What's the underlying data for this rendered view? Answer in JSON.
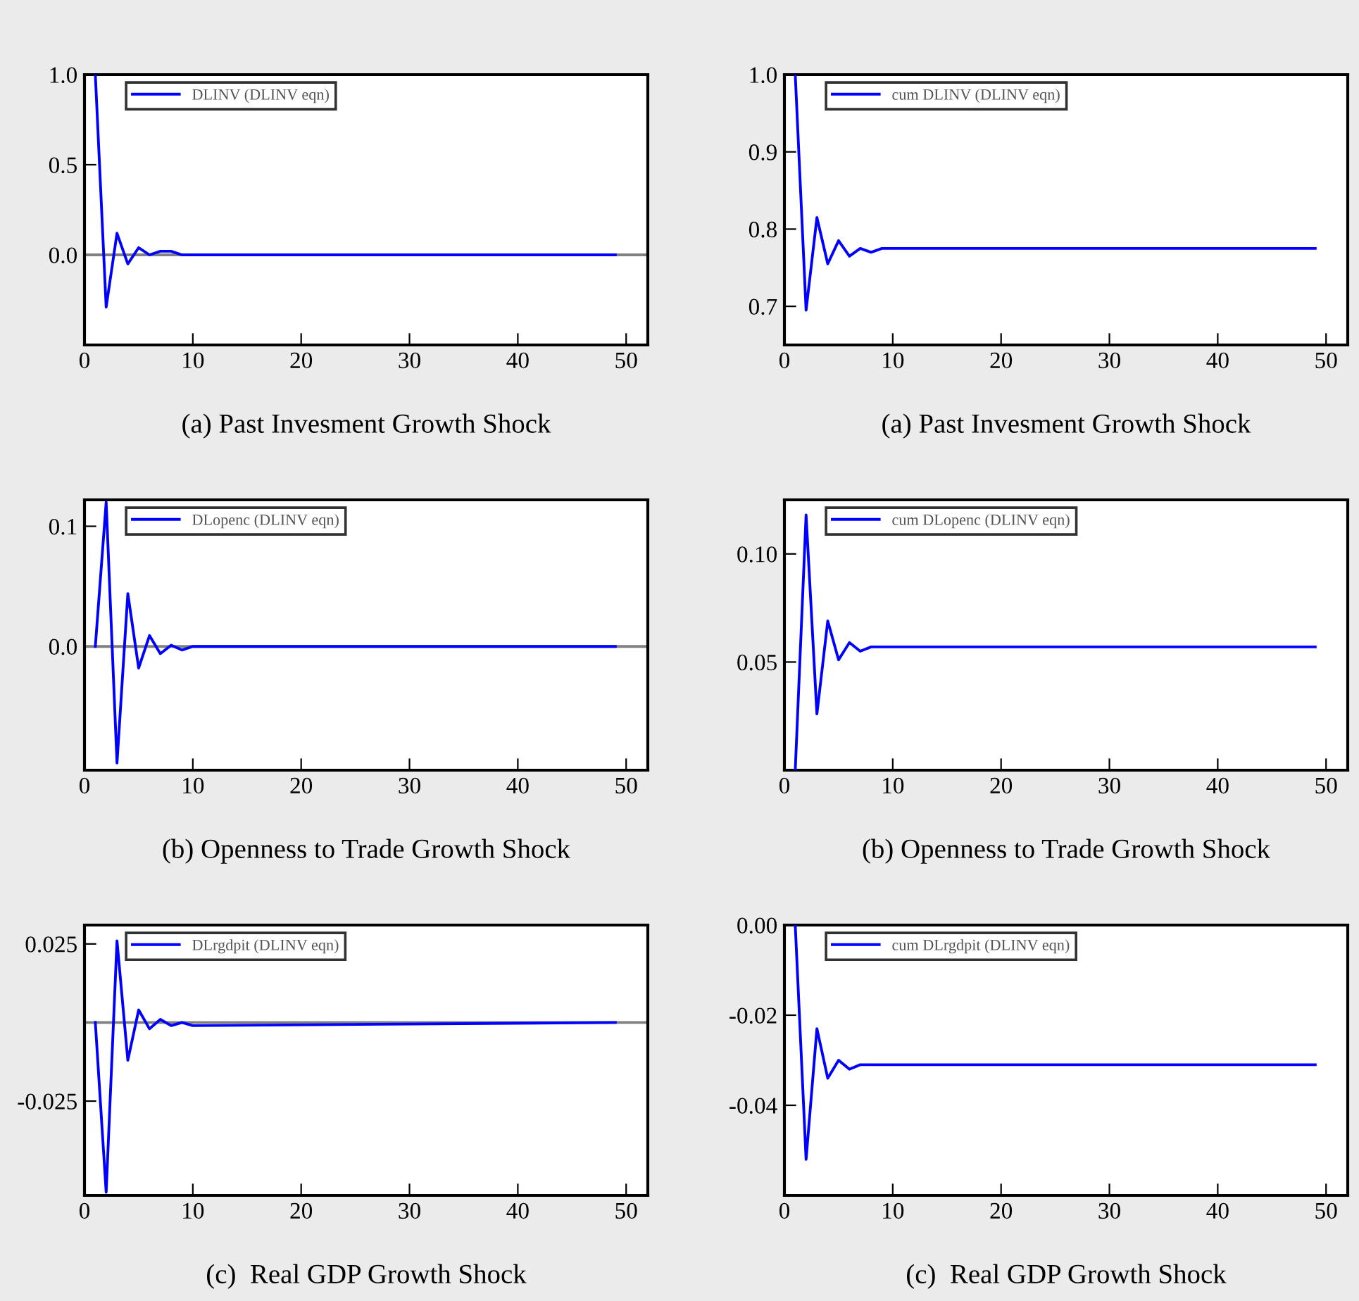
{
  "chart_data": [
    {
      "type": "line",
      "title": "(a) Past Invesment Growth Shock",
      "x": [
        1,
        2,
        3,
        4,
        5,
        6,
        7,
        8,
        9,
        49
      ],
      "series": [
        {
          "name": "DLINV (DLINV eqn)",
          "color": "#0000ff",
          "values": [
            1.0,
            -0.29,
            0.12,
            -0.05,
            0.04,
            0.0,
            0.02,
            0.02,
            0.0,
            0.0
          ]
        }
      ],
      "xlim": [
        0,
        52
      ],
      "xticks": [
        0,
        10,
        20,
        30,
        40,
        50
      ],
      "ylim": [
        -0.5,
        1.0
      ],
      "yticks": [
        {
          "value": 0,
          "label": "0.0"
        },
        0.5,
        {
          "value": 1,
          "label": "1.0"
        }
      ],
      "ref_lines": [
        {
          "axis": "y",
          "value": 0,
          "color": "#808080"
        }
      ],
      "legend": "top left",
      "grid": false
    },
    {
      "type": "line",
      "title": "(a) Past Invesment Growth Shock",
      "x": [
        1,
        2,
        3,
        4,
        5,
        6,
        7,
        8,
        9,
        49
      ],
      "series": [
        {
          "name": "cum DLINV (DLINV eqn)",
          "color": "#0000ff",
          "values": [
            1.0,
            0.695,
            0.815,
            0.755,
            0.785,
            0.765,
            0.775,
            0.77,
            0.775,
            0.775
          ]
        }
      ],
      "xlim": [
        0,
        52
      ],
      "xticks": [
        0,
        10,
        20,
        30,
        40,
        50
      ],
      "ylim": [
        0.65,
        1.0
      ],
      "yticks": [
        0.7,
        0.8,
        0.9,
        {
          "value": 1,
          "label": "1.0"
        }
      ],
      "legend": "top left",
      "grid": false
    },
    {
      "type": "line",
      "title": "(b) Openness to Trade Growth Shock",
      "x": [
        1,
        2,
        3,
        4,
        5,
        6,
        7,
        8,
        9,
        10,
        49
      ],
      "series": [
        {
          "name": "DLopenc (DLINV eqn)",
          "color": "#0000ff",
          "values": [
            0.0,
            0.12,
            -0.097,
            0.044,
            -0.018,
            0.009,
            -0.006,
            0.001,
            -0.003,
            0.0,
            0.0
          ]
        }
      ],
      "xlim": [
        0,
        52
      ],
      "xticks": [
        0,
        10,
        20,
        30,
        40,
        50
      ],
      "ylim": [
        -0.103,
        0.122
      ],
      "yticks": [
        {
          "value": 0,
          "label": "0.0"
        },
        0.1
      ],
      "ref_lines": [
        {
          "axis": "y",
          "value": 0,
          "color": "#808080"
        }
      ],
      "legend": "top left",
      "grid": false
    },
    {
      "type": "line",
      "title": "(b) Openness to Trade Growth Shock",
      "x": [
        1,
        2,
        3,
        4,
        5,
        6,
        7,
        8,
        49
      ],
      "series": [
        {
          "name": "cum DLopenc (DLINV eqn)",
          "color": "#0000ff",
          "values": [
            0.0,
            0.118,
            0.026,
            0.069,
            0.051,
            0.059,
            0.055,
            0.057,
            0.057
          ]
        }
      ],
      "xlim": [
        0,
        52
      ],
      "xticks": [
        0,
        10,
        20,
        30,
        40,
        50
      ],
      "ylim": [
        0.0,
        0.125
      ],
      "yticks": [
        {
          "value": 0.05,
          "label": "0.05"
        },
        {
          "value": 0.1,
          "label": "0.10"
        }
      ],
      "legend": "top left",
      "grid": false
    },
    {
      "type": "line",
      "title": "(c)  Real GDP Growth Shock",
      "x": [
        1,
        2,
        3,
        4,
        5,
        6,
        7,
        8,
        9,
        10,
        49
      ],
      "series": [
        {
          "name": "DLrgdpit (DLINV eqn)",
          "color": "#0000ff",
          "values": [
            0.0,
            -0.054,
            0.026,
            -0.012,
            0.004,
            -0.002,
            0.001,
            -0.001,
            0.0,
            -0.001,
            0.0
          ]
        }
      ],
      "xlim": [
        0,
        52
      ],
      "xticks": [
        0,
        10,
        20,
        30,
        40,
        50
      ],
      "ylim": [
        -0.055,
        0.031
      ],
      "yticks": [
        {
          "value": -0.025,
          "label": "-0.025"
        },
        0.025
      ],
      "ref_lines": [
        {
          "axis": "y",
          "value": 0,
          "color": "#808080"
        }
      ],
      "legend": "top left",
      "grid": false
    },
    {
      "type": "line",
      "title": "(c)  Real GDP Growth Shock",
      "x": [
        1,
        2,
        3,
        4,
        5,
        6,
        7,
        49
      ],
      "series": [
        {
          "name": "cum DLrgdpit (DLINV eqn)",
          "color": "#0000ff",
          "values": [
            0.0,
            -0.052,
            -0.023,
            -0.034,
            -0.03,
            -0.032,
            -0.031,
            -0.031
          ]
        }
      ],
      "xlim": [
        0,
        52
      ],
      "xticks": [
        0,
        10,
        20,
        30,
        40,
        50
      ],
      "ylim": [
        -0.06,
        0.0
      ],
      "yticks": [
        {
          "value": -0.04,
          "label": "-0.04"
        },
        {
          "value": -0.02,
          "label": "-0.02"
        },
        {
          "value": 0,
          "label": "0.00"
        }
      ],
      "legend": "top left",
      "grid": false
    }
  ]
}
